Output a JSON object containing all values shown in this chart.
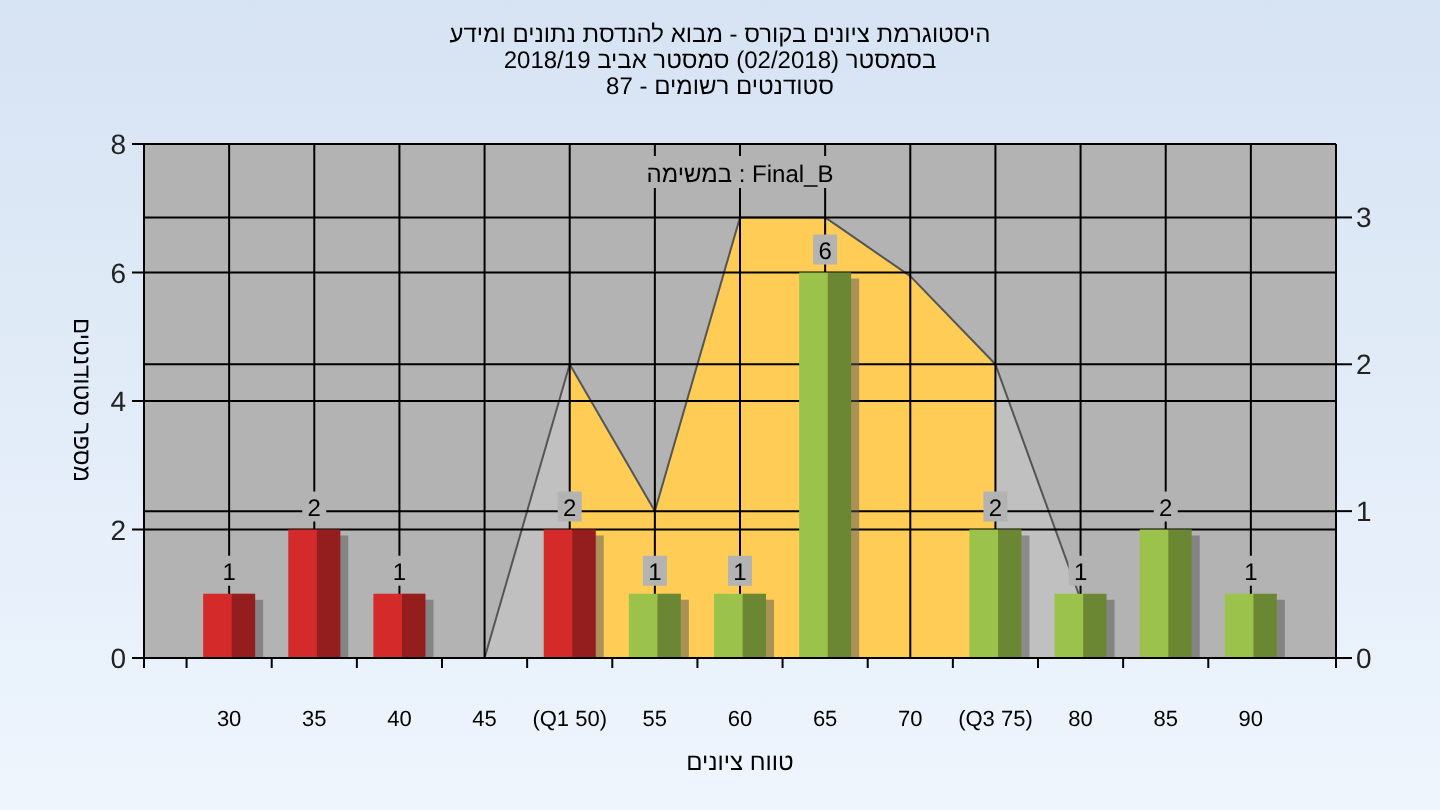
{
  "chart_data": {
    "type": "bar",
    "title": "היסטוגרמת ציונים בקורס - מבוא להנדסת נתונים ומידע",
    "subtitle": "בסמסטר  (02/2018)  סמסטר אביב 2018/19\nסטודנטים רשומים - 87",
    "xlabel": "טווח ציונים",
    "ylabel": "מספר סטודנטים",
    "annotations": [
      "במשימה : Final_B"
    ],
    "categories": [
      "30",
      "35",
      "40",
      "45",
      "(Q1 50)",
      "55",
      "60",
      "65",
      "70",
      "(Q3 75)",
      "80",
      "85",
      "90"
    ],
    "series": [
      {
        "type": "area",
        "axis": "y2",
        "color": "#c0c0c0",
        "values": [
          null,
          null,
          null,
          0,
          2,
          null,
          null,
          null,
          null,
          null,
          null,
          null,
          null
        ]
      },
      {
        "type": "area",
        "axis": "y2",
        "color": "#ffcc55",
        "values": [
          null,
          null,
          null,
          null,
          2,
          1,
          3,
          3,
          2.6,
          2,
          null,
          null,
          null
        ]
      },
      {
        "type": "area",
        "axis": "y2",
        "color": "#c0c0c0",
        "values": [
          null,
          null,
          null,
          null,
          null,
          null,
          null,
          null,
          null,
          2,
          0.4,
          null,
          null
        ]
      },
      {
        "colors": [
          "#d42a2a",
          "#d42a2a",
          "#d42a2a",
          null,
          "#d42a2a",
          "#9bc24a",
          "#9bc24a",
          "#9bc24a",
          null,
          "#9bc24a",
          "#9bc24a",
          "#9bc24a",
          "#9bc24a"
        ],
        "values": [
          1,
          2,
          1,
          null,
          2,
          1,
          1,
          6,
          null,
          2,
          1,
          2,
          1
        ],
        "value_labels": [
          "1",
          "2",
          "1",
          null,
          "2",
          "1",
          "1",
          "6",
          null,
          "2",
          "1",
          "2",
          "1"
        ]
      }
    ],
    "ylim": [
      0,
      8
    ],
    "yticks": [
      0,
      2,
      4,
      6,
      8
    ],
    "y2lim": [
      0,
      3.5
    ],
    "y2ticks": [
      0,
      1,
      2,
      3
    ],
    "grid": true,
    "legend": false
  }
}
